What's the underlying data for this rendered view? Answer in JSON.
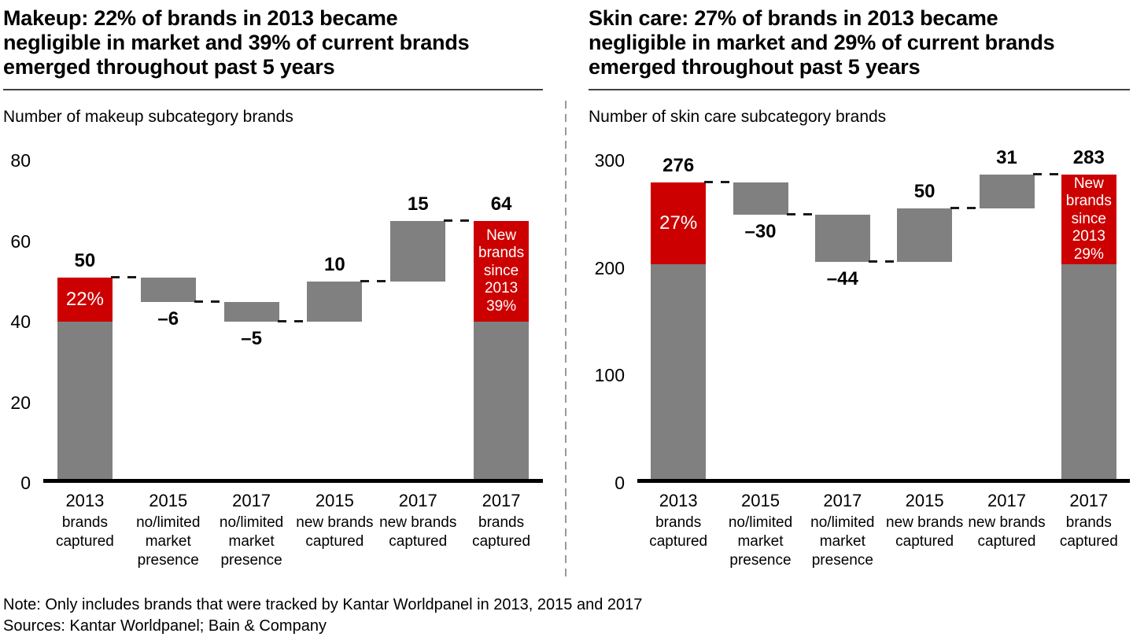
{
  "panels": [
    {
      "title_lines": [
        "Makeup: 22% of brands in 2013 became",
        "negligible in market and 39% of current brands",
        "emerged throughout past 5 years"
      ],
      "subtitle": "Number of makeup subcategory brands"
    },
    {
      "title_lines": [
        "Skin care: 27% of brands in 2013 became",
        "negligible in market and 29% of current brands",
        "emerged throughout past 5 years"
      ],
      "subtitle": "Number of skin care subcategory brands"
    }
  ],
  "chart_data": [
    {
      "type": "bar",
      "subtype": "waterfall",
      "title": "Number of makeup subcategory brands",
      "ylim": [
        0,
        80
      ],
      "yticks": [
        0,
        20,
        40,
        60,
        80
      ],
      "grid": false,
      "legend": "none",
      "colors": {
        "bar": "#808080",
        "highlight": "#cc0000",
        "connector": "#1a1a1a"
      },
      "categories": [
        {
          "year": "2013",
          "desc": "brands captured"
        },
        {
          "year": "2015",
          "desc": "no/limited market presence"
        },
        {
          "year": "2017",
          "desc": "no/limited market presence"
        },
        {
          "year": "2015",
          "desc": "new brands captured"
        },
        {
          "year": "2017",
          "desc": "new brands captured"
        },
        {
          "year": "2017",
          "desc": "brands captured"
        }
      ],
      "bars": [
        {
          "value_label": "50",
          "start": 0,
          "end": 50,
          "kind": "total",
          "red_from": 39,
          "red_label": "22%",
          "red_multiline": false
        },
        {
          "value_label": "–6",
          "start": 50,
          "end": 44,
          "kind": "decrease"
        },
        {
          "value_label": "–5",
          "start": 44,
          "end": 39,
          "kind": "decrease"
        },
        {
          "value_label": "10",
          "start": 39,
          "end": 49,
          "kind": "increase"
        },
        {
          "value_label": "15",
          "start": 49,
          "end": 64,
          "kind": "increase"
        },
        {
          "value_label": "64",
          "start": 0,
          "end": 64,
          "kind": "total",
          "red_from": 39,
          "red_label": "New brands since 2013 39%",
          "red_multiline": true
        }
      ]
    },
    {
      "type": "bar",
      "subtype": "waterfall",
      "title": "Number of skin care subcategory brands",
      "ylim": [
        0,
        300
      ],
      "yticks": [
        0,
        100,
        200,
        300
      ],
      "grid": false,
      "legend": "none",
      "colors": {
        "bar": "#808080",
        "highlight": "#cc0000",
        "connector": "#1a1a1a"
      },
      "categories": [
        {
          "year": "2013",
          "desc": "brands captured"
        },
        {
          "year": "2015",
          "desc": "no/limited market presence"
        },
        {
          "year": "2017",
          "desc": "no/limited market presence"
        },
        {
          "year": "2015",
          "desc": "new brands captured"
        },
        {
          "year": "2017",
          "desc": "new brands captured"
        },
        {
          "year": "2017",
          "desc": "brands captured"
        }
      ],
      "bars": [
        {
          "value_label": "276",
          "start": 0,
          "end": 276,
          "kind": "total",
          "red_from": 200,
          "red_label": "27%",
          "red_multiline": false
        },
        {
          "value_label": "–30",
          "start": 276,
          "end": 246,
          "kind": "decrease"
        },
        {
          "value_label": "–44",
          "start": 246,
          "end": 202,
          "kind": "decrease"
        },
        {
          "value_label": "50",
          "start": 202,
          "end": 252,
          "kind": "increase"
        },
        {
          "value_label": "31",
          "start": 252,
          "end": 283,
          "kind": "increase"
        },
        {
          "value_label": "283",
          "start": 0,
          "end": 283,
          "kind": "total",
          "red_from": 200,
          "red_label": "New brands since 2013 29%",
          "red_multiline": true
        }
      ]
    }
  ],
  "footer": {
    "note": "Note: Only includes brands that were tracked by Kantar Worldpanel in 2013, 2015 and 2017",
    "sources": "Sources: Kantar Worldpanel; Bain & Company"
  }
}
